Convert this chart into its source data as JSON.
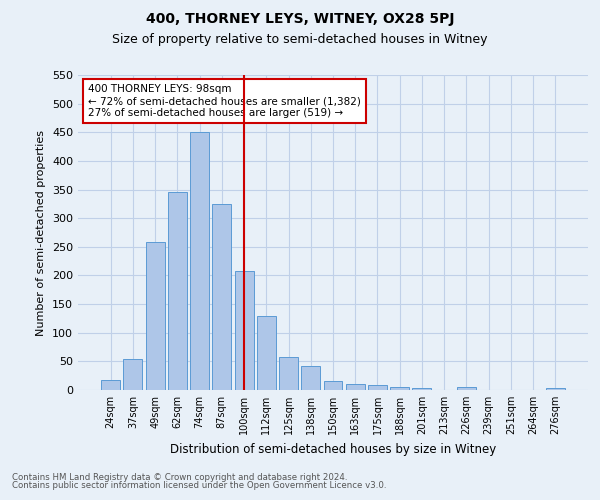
{
  "title": "400, THORNEY LEYS, WITNEY, OX28 5PJ",
  "subtitle": "Size of property relative to semi-detached houses in Witney",
  "xlabel": "Distribution of semi-detached houses by size in Witney",
  "ylabel": "Number of semi-detached properties",
  "footnote1": "Contains HM Land Registry data © Crown copyright and database right 2024.",
  "footnote2": "Contains public sector information licensed under the Open Government Licence v3.0.",
  "bar_labels": [
    "24sqm",
    "37sqm",
    "49sqm",
    "62sqm",
    "74sqm",
    "87sqm",
    "100sqm",
    "112sqm",
    "125sqm",
    "138sqm",
    "150sqm",
    "163sqm",
    "175sqm",
    "188sqm",
    "201sqm",
    "213sqm",
    "226sqm",
    "239sqm",
    "251sqm",
    "264sqm",
    "276sqm"
  ],
  "bar_values": [
    18,
    55,
    258,
    345,
    450,
    325,
    208,
    130,
    57,
    42,
    15,
    11,
    9,
    5,
    3,
    0,
    5,
    0,
    0,
    0,
    3
  ],
  "bar_color": "#aec6e8",
  "bar_edge_color": "#5b9bd5",
  "vline_x": 6,
  "vline_color": "#cc0000",
  "annotation_title": "400 THORNEY LEYS: 98sqm",
  "annotation_line1": "← 72% of semi-detached houses are smaller (1,382)",
  "annotation_line2": "27% of semi-detached houses are larger (519) →",
  "annotation_box_color": "#ffffff",
  "annotation_box_edge": "#cc0000",
  "ylim": [
    0,
    550
  ],
  "yticks": [
    0,
    50,
    100,
    150,
    200,
    250,
    300,
    350,
    400,
    450,
    500,
    550
  ],
  "grid_color": "#c0d0e8",
  "background_color": "#e8f0f8",
  "title_fontsize": 10,
  "subtitle_fontsize": 9
}
